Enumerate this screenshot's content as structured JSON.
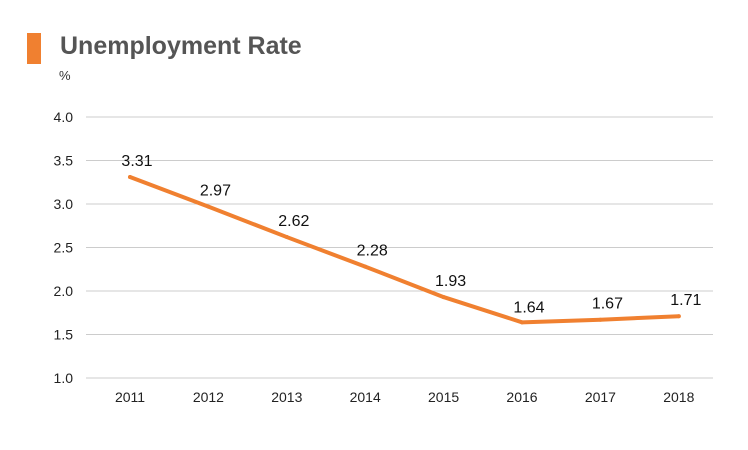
{
  "title": "Unemployment Rate",
  "unit": "%",
  "colors": {
    "accent": "#F08030",
    "line": "#F08030",
    "grid": "#CCCCCC",
    "title": "#555555"
  },
  "chart_data": {
    "type": "line",
    "title": "Unemployment Rate",
    "ylabel": "%",
    "xlabel": "",
    "categories": [
      "2011",
      "2012",
      "2013",
      "2014",
      "2015",
      "2016",
      "2017",
      "2018"
    ],
    "series": [
      {
        "name": "Unemployment Rate",
        "values": [
          3.31,
          2.97,
          2.62,
          2.28,
          1.93,
          1.64,
          1.67,
          1.71
        ]
      }
    ],
    "data_labels": [
      "3.31",
      "2.97",
      "2.62",
      "2.28",
      "1.93",
      "1.64",
      "1.67",
      "1.71"
    ],
    "ylim": [
      1.0,
      4.0
    ],
    "yticks": [
      "1.0",
      "1.5",
      "2.0",
      "2.5",
      "3.0",
      "3.5",
      "4.0"
    ],
    "grid": true,
    "legend": "none"
  }
}
